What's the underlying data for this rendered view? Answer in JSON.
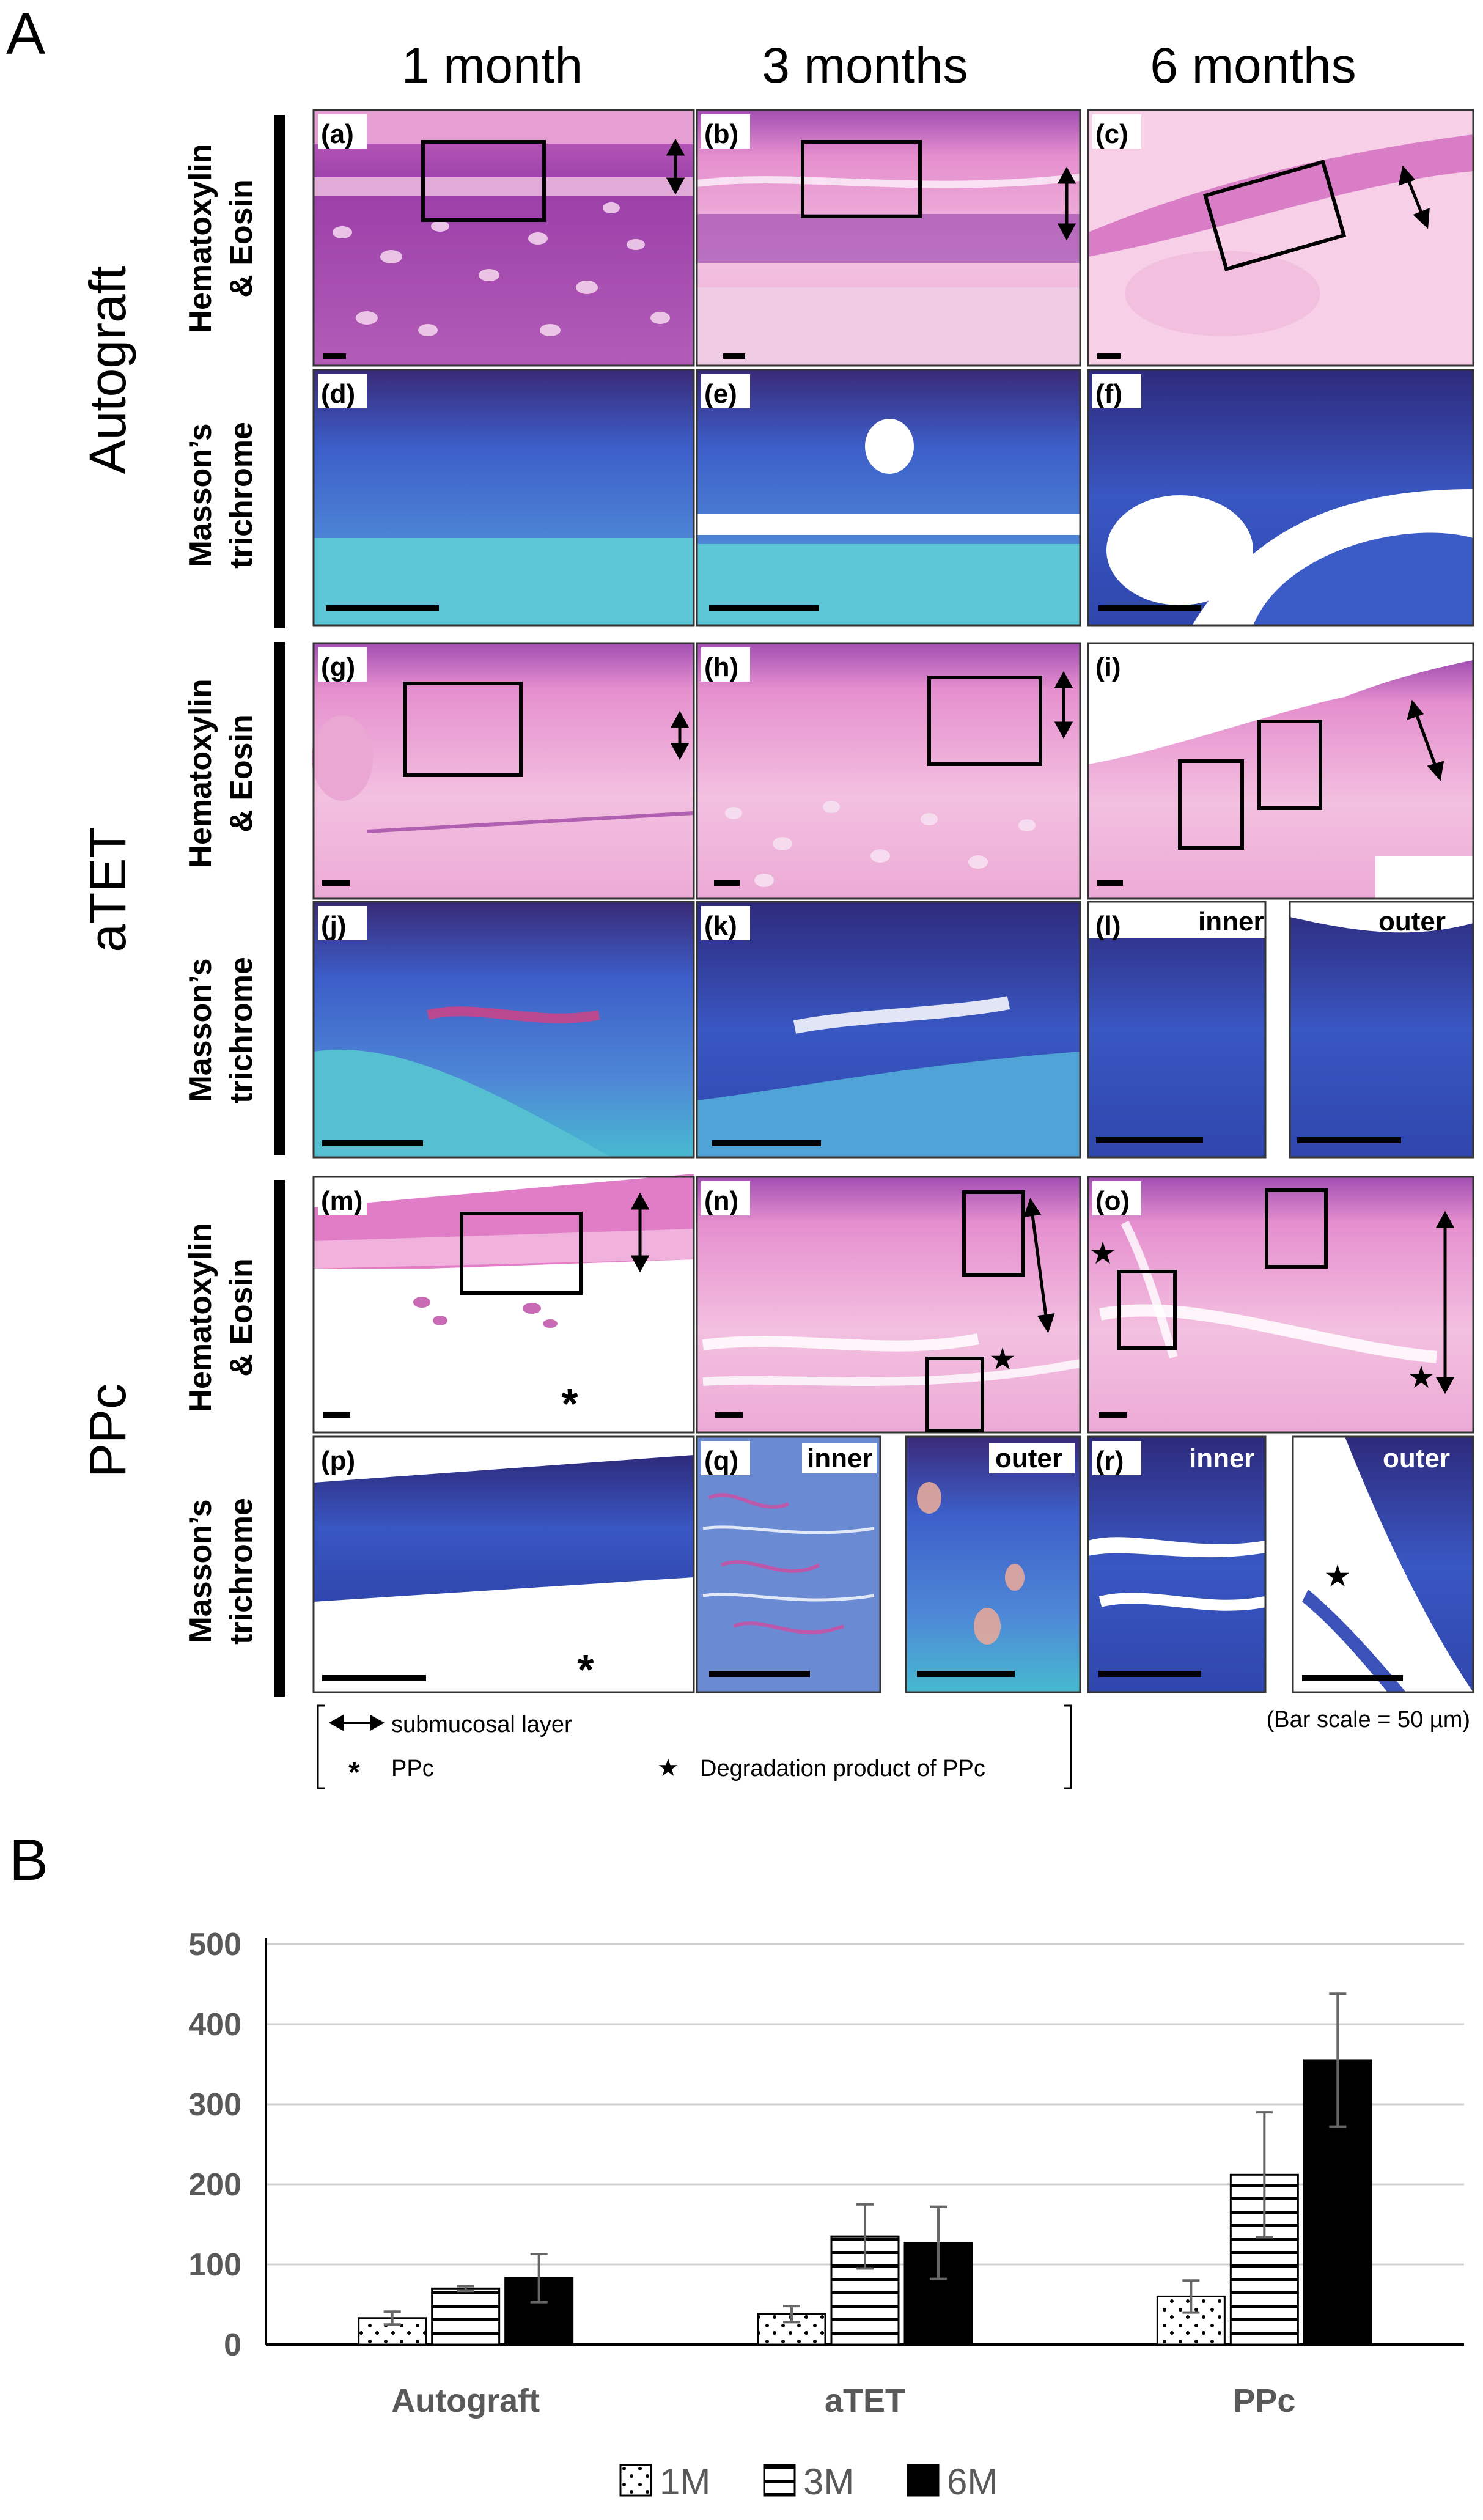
{
  "panel_a": {
    "label": "A",
    "columns": [
      "1 month",
      "3 months",
      "6 months"
    ],
    "groups": [
      {
        "name": "Autograft"
      },
      {
        "name": "aTET"
      },
      {
        "name": "PPc"
      }
    ],
    "stains": {
      "he": [
        "Hematoxylin",
        "& Eosin"
      ],
      "mt": [
        "Masson’s",
        "trichrome"
      ]
    },
    "tiles": {
      "a": "(a)",
      "b": "(b)",
      "c": "(c)",
      "d": "(d)",
      "e": "(e)",
      "f": "(f)",
      "g": "(g)",
      "h": "(h)",
      "i": "(i)",
      "j": "(j)",
      "k": "(k)",
      "l": "(l)",
      "m": "(m)",
      "n": "(n)",
      "o": "(o)",
      "p": "(p)",
      "q": "(q)",
      "r": "(r)"
    },
    "inner_label": "inner",
    "outer_label": "outer",
    "legend": {
      "submucosal": "submucosal layer",
      "ppc": "PPc",
      "degradation": "Degradation product of PPc",
      "asterisk_symbol": "*",
      "star_symbol": "★"
    },
    "bar_scale": "(Bar scale = 50 µm)"
  },
  "panel_b": {
    "label": "B"
  },
  "chart_data": {
    "type": "bar",
    "categories": [
      "Autograft",
      "aTET",
      "PPc"
    ],
    "series": [
      {
        "name": "1M",
        "values": [
          33,
          38,
          60
        ],
        "errors": [
          8,
          10,
          20
        ],
        "fill": "dots"
      },
      {
        "name": "3M",
        "values": [
          70,
          135,
          212
        ],
        "errors": [
          3,
          40,
          78
        ],
        "fill": "horizontal-stripes"
      },
      {
        "name": "6M",
        "values": [
          83,
          127,
          355
        ],
        "errors": [
          30,
          45,
          83
        ],
        "fill": "solid"
      }
    ],
    "ylim": [
      0,
      500
    ],
    "yticks": [
      "0",
      "100",
      "200",
      "300",
      "400",
      "500"
    ],
    "grid": true,
    "legend_position": "bottom-center",
    "title": "",
    "xlabel": "",
    "ylabel": ""
  },
  "colors": {
    "he_pink": "#f1b2d8",
    "he_purple": "#8e3aa0",
    "mt_blue": "#3a5cc4",
    "mt_teal": "#49b8cf",
    "mt_purple": "#4a2c8a",
    "gridline": "#d0d0d0",
    "axis_text": "#595959"
  }
}
